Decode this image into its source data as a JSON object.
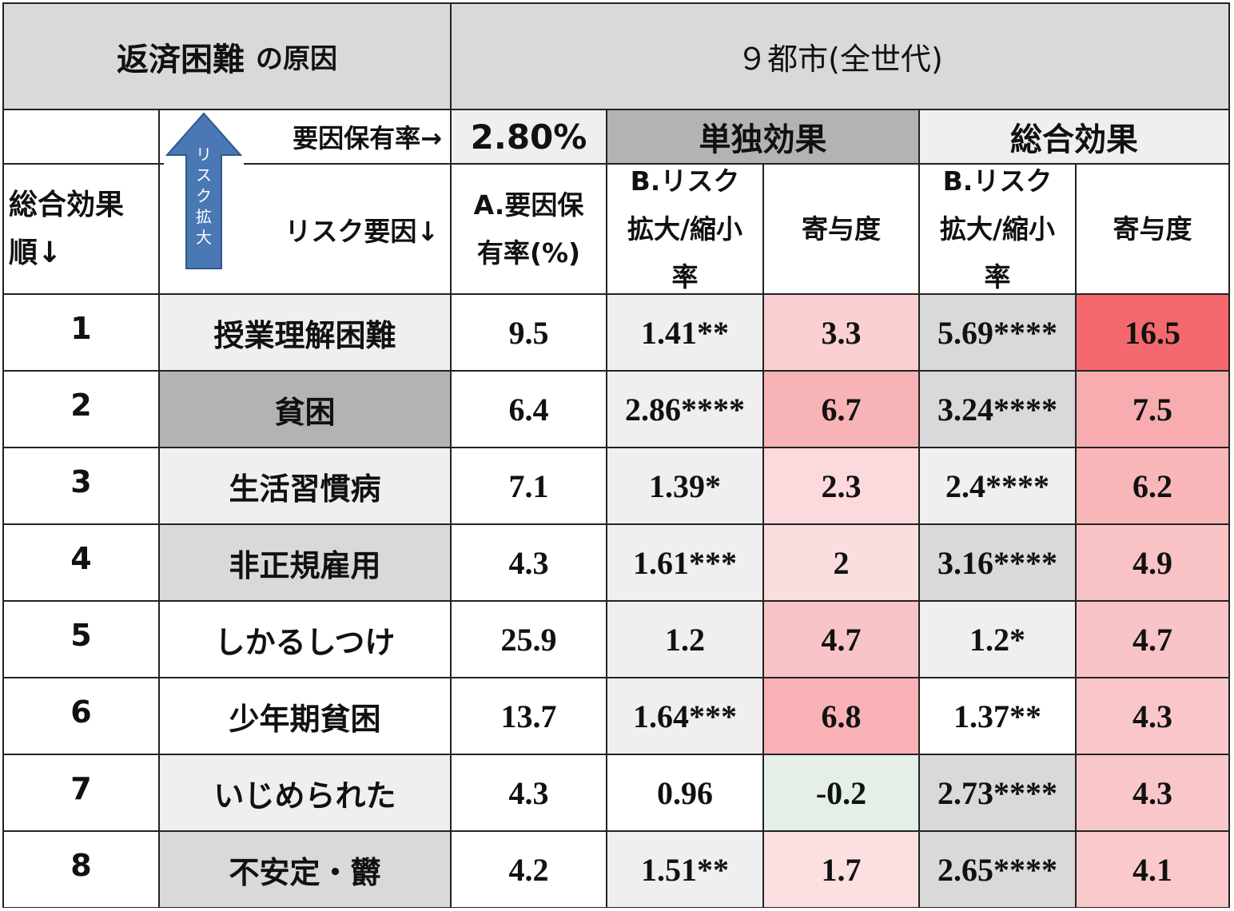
{
  "title": {
    "main": "返済困難",
    "suffix": "の原因"
  },
  "region_header": "９都市(全世代)",
  "arrow_label": "リスク拡大",
  "prevalence_label": "要因保有率→",
  "prevalence_value": "2.80%",
  "group_single": "単独効果",
  "group_total": "総合効果",
  "col_rank_line1": "総合効果",
  "col_rank_line2": "順↓",
  "col_factor": "リスク要因↓",
  "col_a_line1": "A.要因保",
  "col_a_line2": "有率(%)",
  "col_b1_line1": "B.リスク",
  "col_b1_line2": "拡大/縮小",
  "col_b1_line3": "率",
  "col_c1": "寄与度",
  "col_b2_line1": "B.リスク",
  "col_b2_line2": "拡大/縮小",
  "col_b2_line3": "率",
  "col_c2": "寄与度",
  "colors": {
    "header_gray": "#d9d9d9",
    "light_gray": "#efefef",
    "dark_gray": "#b3b3b3",
    "arrow_blue": "#4a78b5",
    "negative_green": "#e3efe7",
    "contribution_scale_max": "#f4696e"
  },
  "chart_data": {
    "type": "table",
    "columns": [
      "総合効果順",
      "リスク要因",
      "A.要因保有率(%)",
      "単独効果 B.リスク拡大/縮小率",
      "単独効果 寄与度",
      "総合効果 B.リスク拡大/縮小率",
      "総合効果 寄与度"
    ],
    "rows": [
      {
        "rank": "1",
        "factor": "授業理解困難",
        "a": "9.5",
        "b1": "1.41**",
        "c1": "3.3",
        "b2": "5.69****",
        "c2": "16.5",
        "factor_shade": "lg",
        "b1_shade": "lg",
        "b2_shade": "g",
        "c1_value": 3.3,
        "c2_value": 16.5
      },
      {
        "rank": "2",
        "factor": "貧困",
        "a": "6.4",
        "b1": "2.86****",
        "c1": "6.7",
        "b2": "3.24****",
        "c2": "7.5",
        "factor_shade": "dg",
        "b1_shade": "lg",
        "b2_shade": "g",
        "c1_value": 6.7,
        "c2_value": 7.5
      },
      {
        "rank": "3",
        "factor": "生活習慣病",
        "a": "7.1",
        "b1": "1.39*",
        "c1": "2.3",
        "b2": "2.4****",
        "c2": "6.2",
        "factor_shade": "lg",
        "b1_shade": "lg",
        "b2_shade": "lg",
        "c1_value": 2.3,
        "c2_value": 6.2
      },
      {
        "rank": "4",
        "factor": "非正規雇用",
        "a": "4.3",
        "b1": "1.61***",
        "c1": "2",
        "b2": "3.16****",
        "c2": "4.9",
        "factor_shade": "g",
        "b1_shade": "lg",
        "b2_shade": "g",
        "c1_value": 2,
        "c2_value": 4.9
      },
      {
        "rank": "5",
        "factor": "しかるしつけ",
        "a": "25.9",
        "b1": "1.2",
        "c1": "4.7",
        "b2": "1.2*",
        "c2": "4.7",
        "factor_shade": "w",
        "b1_shade": "lg",
        "b2_shade": "lg",
        "c1_value": 4.7,
        "c2_value": 4.7
      },
      {
        "rank": "6",
        "factor": "少年期貧困",
        "a": "13.7",
        "b1": "1.64***",
        "c1": "6.8",
        "b2": "1.37**",
        "c2": "4.3",
        "factor_shade": "w",
        "b1_shade": "lg",
        "b2_shade": "w",
        "c1_value": 6.8,
        "c2_value": 4.3
      },
      {
        "rank": "7",
        "factor": "いじめられた",
        "a": "4.3",
        "b1": "0.96",
        "c1": "-0.2",
        "b2": "2.73****",
        "c2": "4.3",
        "factor_shade": "lg",
        "b1_shade": "w",
        "b2_shade": "g",
        "c1_value": -0.2,
        "c2_value": 4.3
      },
      {
        "rank": "8",
        "factor": "不安定・欝",
        "a": "4.2",
        "b1": "1.51**",
        "c1": "1.7",
        "b2": "2.65****",
        "c2": "4.1",
        "factor_shade": "g",
        "b1_shade": "lg",
        "b2_shade": "g",
        "c1_value": 1.7,
        "c2_value": 4.1
      }
    ]
  }
}
